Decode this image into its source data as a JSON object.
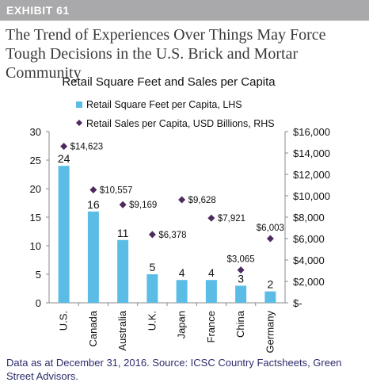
{
  "header": {
    "exhibit": "EXHIBIT 61",
    "headline": "The Trend of Experiences Over Things May Force Tough Decisions in the U.S. Brick and Mortar Community"
  },
  "chart_data": {
    "type": "bar",
    "title": "Retail Square Feet and Sales per Capita",
    "categories": [
      "U.S.",
      "Canada",
      "Australia",
      "U.K.",
      "Japan",
      "France",
      "China",
      "Germany"
    ],
    "series": [
      {
        "name": "Retail Square Feet per Capita, LHS",
        "type": "bar",
        "axis": "left",
        "color": "#5bbde6",
        "values": [
          24,
          16,
          11,
          5,
          4,
          4,
          3,
          2
        ],
        "labels": [
          "24",
          "16",
          "11",
          "5",
          "4",
          "4",
          "3",
          "2"
        ]
      },
      {
        "name": "Retail Sales per Capita, USD Billions, RHS",
        "type": "scatter",
        "axis": "right",
        "color": "#4e2a5e",
        "marker": "diamond",
        "values": [
          14623,
          10557,
          9169,
          6378,
          9628,
          7921,
          3065,
          6003
        ],
        "labels": [
          "$14,623",
          "$10,557",
          "$9,169",
          "$6,378",
          "$9,628",
          "$7,921",
          "$3,065",
          "$6,003"
        ]
      }
    ],
    "y_left": {
      "min": 0,
      "max": 30,
      "ticks": [
        "0",
        "5",
        "10",
        "15",
        "20",
        "25",
        "30"
      ]
    },
    "y_right": {
      "min": 0,
      "max": 16000,
      "ticks": [
        "$-",
        "$2,000",
        "$4,000",
        "$6,000",
        "$8,000",
        "$10,000",
        "$12,000",
        "$14,000",
        "$16,000"
      ]
    },
    "grid": false,
    "legend": "top"
  },
  "footnote": "Data as at December 31, 2016. Source: ICSC Country Factsheets, Green Street Advisors."
}
